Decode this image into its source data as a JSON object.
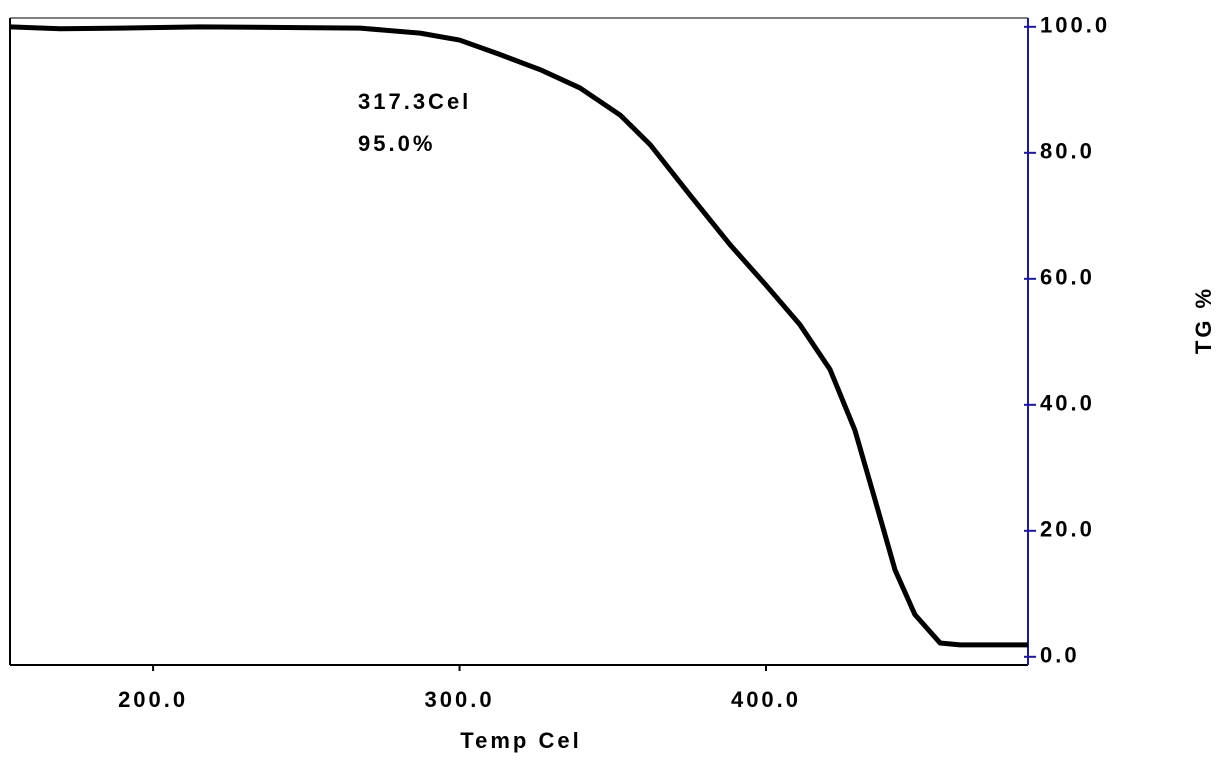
{
  "chart_data": {
    "type": "line",
    "x_label": "Temp Cel",
    "y_label": "TG %",
    "annotations": [
      "317.3Cel",
      "95.0%"
    ],
    "x": [
      153.3,
      169.7,
      189.2,
      215.3,
      267.5,
      287.1,
      300,
      313.2,
      326.3,
      339.3,
      352.4,
      362.2,
      375.2,
      388.3,
      400,
      411.1,
      420.9,
      429.0,
      435.6,
      442.1,
      448.6,
      456.8,
      463.3,
      485.5
    ],
    "values": [
      100,
      99.7,
      99.8,
      100,
      99.8,
      99.0,
      97.9,
      95.6,
      93.2,
      90.3,
      86.0,
      81.3,
      73.3,
      65.4,
      59.0,
      52.7,
      45.6,
      36.0,
      24.9,
      13.8,
      6.7,
      2.2,
      1.9,
      1.9
    ],
    "color": "#000000",
    "xlim": [
      153.3,
      485.5
    ],
    "ylim": [
      -1.3,
      101.4
    ],
    "xticks": [
      {
        "value": 200,
        "label": "200.0"
      },
      {
        "value": 300,
        "label": "300.0"
      },
      {
        "value": 400,
        "label": "400.0"
      }
    ],
    "yticks": [
      {
        "value": 0,
        "label": "0.0"
      },
      {
        "value": 20,
        "label": "20.0"
      },
      {
        "value": 40,
        "label": "40.0"
      },
      {
        "value": 60,
        "label": "60.0"
      },
      {
        "value": 80,
        "label": "80.0"
      },
      {
        "value": 100,
        "label": "100.0"
      }
    ],
    "y_axis_color": "#1a1aa0"
  }
}
